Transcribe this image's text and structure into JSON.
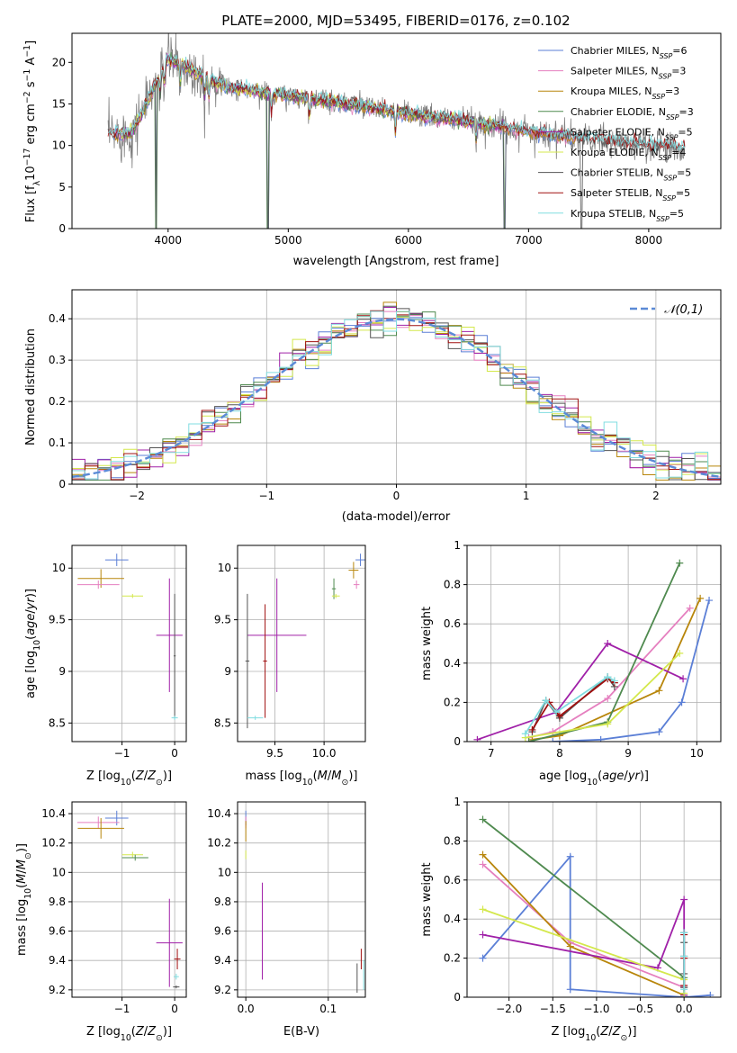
{
  "figure_title": "PLATE=2000, MJD=53495, FIBERID=0176, z=0.102",
  "colors": {
    "Chabrier MILES": "#5b7fd6",
    "Salpeter MILES": "#e57fbf",
    "Kroupa MILES": "#b8860b",
    "Chabrier ELODIE": "#4f8a4f",
    "Salpeter ELODIE": "#a020a8",
    "Kroupa ELODIE": "#d4e84c",
    "Chabrier STELIB": "#555555",
    "Salpeter STELIB": "#a01010",
    "Kroupa STELIB": "#80dde0",
    "data": "#808080",
    "gaussian": "#5b8ad6",
    "orange": "#e87722"
  },
  "chart_data": [
    {
      "type": "line",
      "panel": "spectrum",
      "xlabel": "wavelength [Angstrom, rest frame]",
      "ylabel": "Flux [f_λ10^-17 erg cm^-2 s^-1 A^-1]",
      "xlim": [
        3200,
        8600
      ],
      "ylim": [
        0,
        23.5
      ],
      "xticks": [
        4000,
        5000,
        6000,
        7000,
        8000
      ],
      "yticks": [
        0,
        5,
        10,
        15,
        20
      ],
      "legend_position": "upper-right",
      "legend": [
        {
          "name": "Chabrier MILES",
          "nssp": "6"
        },
        {
          "name": "Salpeter MILES",
          "nssp": "3"
        },
        {
          "name": "Kroupa MILES",
          "nssp": "3"
        },
        {
          "name": "Chabrier ELODIE",
          "nssp": "3"
        },
        {
          "name": "Salpeter ELODIE",
          "nssp": "5"
        },
        {
          "name": "Kroupa ELODIE",
          "nssp": "4"
        },
        {
          "name": "Chabrier STELIB",
          "nssp": "5"
        },
        {
          "name": "Salpeter STELIB",
          "nssp": "5"
        },
        {
          "name": "Kroupa STELIB",
          "nssp": "5"
        }
      ],
      "continuum": {
        "x": [
          3500,
          3700,
          3900,
          4000,
          4200,
          4500,
          5000,
          5500,
          6000,
          6500,
          7000,
          7500,
          8000,
          8300
        ],
        "y": [
          11.3,
          11.5,
          17.5,
          20.5,
          19.0,
          17.0,
          16.0,
          15.0,
          13.8,
          12.9,
          11.7,
          10.7,
          10.0,
          9.6
        ]
      },
      "grid": false
    },
    {
      "type": "step",
      "panel": "residual_histogram",
      "xlabel": "(data-model)/error",
      "ylabel": "Normed distribution",
      "xlim": [
        -2.5,
        2.5
      ],
      "ylim": [
        0,
        0.47
      ],
      "xticks": [
        -2,
        -1,
        0,
        1,
        2
      ],
      "yticks": [
        0.0,
        0.1,
        0.2,
        0.3,
        0.4
      ],
      "legend_position": "upper-right",
      "legend": [
        "𝒩(0,1)"
      ],
      "grid": true
    },
    {
      "type": "errorbar",
      "panel": "age_vs_Z",
      "xlabel": "Z [log10(Z/Z⊙)]",
      "ylabel": "age [log10(age/yr)]",
      "xlim": [
        -1.95,
        0.22
      ],
      "ylim": [
        8.32,
        10.22
      ],
      "xticks": [
        -1,
        0
      ],
      "yticks": [
        8.5,
        9.0,
        9.5,
        10.0
      ],
      "grid": true,
      "points": [
        {
          "series": "Chabrier MILES",
          "x": -1.1,
          "y": 10.08,
          "xerr": 0.22,
          "yerr": 0.06
        },
        {
          "series": "Kroupa MILES",
          "x": -1.4,
          "y": 9.9,
          "xerr": 0.44,
          "yerr": 0.09
        },
        {
          "series": "Salpeter MILES",
          "x": -1.45,
          "y": 9.84,
          "xerr": 0.4,
          "yerr": 0.04
        },
        {
          "series": "Kroupa ELODIE",
          "x": -0.8,
          "y": 9.73,
          "xerr": 0.2,
          "yerr": 0.02
        },
        {
          "series": "Salpeter ELODIE",
          "x": -0.1,
          "y": 9.35,
          "xerr": 0.25,
          "yerr": 0.55
        },
        {
          "series": "Chabrier STELIB",
          "x": 0.0,
          "y": 9.15,
          "xerr": 0.02,
          "yerr": 0.6
        },
        {
          "series": "Kroupa STELIB",
          "x": 0.0,
          "y": 8.55,
          "xerr": 0.06,
          "yerr": 0.02
        }
      ]
    },
    {
      "type": "errorbar",
      "panel": "age_vs_mass",
      "xlabel": "mass [log10(M/M⊙)]",
      "ylabel": "",
      "xlim": [
        9.12,
        10.42
      ],
      "ylim": [
        8.32,
        10.22
      ],
      "xticks": [
        9.5,
        10.0
      ],
      "yticks": [
        8.5,
        9.0,
        9.5,
        10.0
      ],
      "grid": true,
      "points": [
        {
          "series": "Chabrier MILES",
          "x": 10.37,
          "y": 10.08,
          "xerr": 0.05,
          "yerr": 0.06
        },
        {
          "series": "Kroupa MILES",
          "x": 10.3,
          "y": 9.98,
          "xerr": 0.05,
          "yerr": 0.08
        },
        {
          "series": "Salpeter MILES",
          "x": 10.33,
          "y": 9.84,
          "xerr": 0.03,
          "yerr": 0.04
        },
        {
          "series": "Chabrier ELODIE",
          "x": 10.1,
          "y": 9.8,
          "xerr": 0.02,
          "yerr": 0.1
        },
        {
          "series": "Kroupa ELODIE",
          "x": 10.12,
          "y": 9.73,
          "xerr": 0.04,
          "yerr": 0.02
        },
        {
          "series": "Salpeter ELODIE",
          "x": 9.52,
          "y": 9.35,
          "xerr": 0.3,
          "yerr": 0.55
        },
        {
          "series": "Chabrier STELIB",
          "x": 9.22,
          "y": 9.1,
          "xerr": 0.02,
          "yerr": 0.65
        },
        {
          "series": "Kroupa STELIB",
          "x": 9.3,
          "y": 8.55,
          "xerr": 0.08,
          "yerr": 0.02
        },
        {
          "series": "Salpeter STELIB",
          "x": 9.4,
          "y": 9.1,
          "xerr": 0.02,
          "yerr": 0.55
        }
      ]
    },
    {
      "type": "line",
      "panel": "mass_weight_vs_age",
      "xlabel": "age [log10(age/yr)]",
      "ylabel": "mass weight",
      "xlim": [
        6.65,
        10.35
      ],
      "ylim": [
        0,
        1.0
      ],
      "xticks": [
        7,
        8,
        9,
        10
      ],
      "yticks": [
        0.0,
        0.2,
        0.4,
        0.6,
        0.8,
        1.0
      ],
      "grid": true,
      "series": [
        {
          "name": "Chabrier MILES",
          "x": [
            7.9,
            8.6,
            9.45,
            9.78,
            10.18
          ],
          "y": [
            0.0,
            0.01,
            0.05,
            0.2,
            0.72
          ]
        },
        {
          "name": "Salpeter MILES",
          "x": [
            7.55,
            7.9,
            8.7,
            9.9
          ],
          "y": [
            0.02,
            0.05,
            0.22,
            0.68
          ]
        },
        {
          "name": "Kroupa MILES",
          "x": [
            7.6,
            8.0,
            9.45,
            10.05
          ],
          "y": [
            0.01,
            0.03,
            0.26,
            0.73
          ]
        },
        {
          "name": "Chabrier ELODIE",
          "x": [
            7.55,
            8.7,
            9.75
          ],
          "y": [
            0.0,
            0.1,
            0.91
          ]
        },
        {
          "name": "Salpeter ELODIE",
          "x": [
            6.8,
            7.95,
            8.7,
            9.8
          ],
          "y": [
            0.01,
            0.15,
            0.5,
            0.32
          ]
        },
        {
          "name": "Kroupa ELODIE",
          "x": [
            7.5,
            8.7,
            9.75
          ],
          "y": [
            0.02,
            0.09,
            0.45
          ]
        },
        {
          "name": "Chabrier STELIB",
          "x": [
            7.6,
            7.8,
            8.0,
            8.7,
            8.8
          ],
          "y": [
            0.05,
            0.21,
            0.12,
            0.33,
            0.28
          ]
        },
        {
          "name": "Salpeter STELIB",
          "x": [
            7.6,
            7.85,
            8.0,
            8.7,
            8.8
          ],
          "y": [
            0.06,
            0.2,
            0.13,
            0.32,
            0.3
          ]
        },
        {
          "name": "Kroupa STELIB",
          "x": [
            7.5,
            7.8,
            7.95,
            8.7,
            8.8
          ],
          "y": [
            0.04,
            0.21,
            0.15,
            0.33,
            0.31
          ]
        }
      ]
    },
    {
      "type": "errorbar",
      "panel": "mass_vs_Z",
      "xlabel": "Z [log10(Z/Z⊙)]",
      "ylabel": "mass [log10(M/M⊙)]",
      "xlim": [
        -1.95,
        0.22
      ],
      "ylim": [
        9.15,
        10.48
      ],
      "xticks": [
        -1,
        0
      ],
      "yticks": [
        9.2,
        9.4,
        9.6,
        9.8,
        10.0,
        10.2,
        10.4
      ],
      "grid": true,
      "points": [
        {
          "series": "Chabrier MILES",
          "x": -1.1,
          "y": 10.37,
          "xerr": 0.22,
          "yerr": 0.05
        },
        {
          "series": "Salpeter MILES",
          "x": -1.45,
          "y": 10.34,
          "xerr": 0.4,
          "yerr": 0.04
        },
        {
          "series": "Kroupa MILES",
          "x": -1.4,
          "y": 10.3,
          "xerr": 0.44,
          "yerr": 0.07
        },
        {
          "series": "Kroupa ELODIE",
          "x": -0.8,
          "y": 10.12,
          "xerr": 0.2,
          "yerr": 0.02
        },
        {
          "series": "Chabrier ELODIE",
          "x": -0.75,
          "y": 10.1,
          "xerr": 0.25,
          "yerr": 0.02
        },
        {
          "series": "Salpeter ELODIE",
          "x": -0.1,
          "y": 9.52,
          "xerr": 0.25,
          "yerr": 0.3
        },
        {
          "series": "Salpeter STELIB",
          "x": 0.05,
          "y": 9.41,
          "xerr": 0.06,
          "yerr": 0.07
        },
        {
          "series": "Kroupa STELIB",
          "x": 0.03,
          "y": 9.29,
          "xerr": 0.05,
          "yerr": 0.02
        },
        {
          "series": "Chabrier STELIB",
          "x": 0.03,
          "y": 9.22,
          "xerr": 0.06,
          "yerr": 0.01
        }
      ]
    },
    {
      "type": "errorbar",
      "panel": "mass_vs_EBV",
      "xlabel": "E(B-V)",
      "ylabel": "",
      "xlim": [
        -0.01,
        0.145
      ],
      "ylim": [
        9.15,
        10.48
      ],
      "xticks": [
        0.0,
        0.1
      ],
      "yticks": [
        9.2,
        9.4,
        9.6,
        9.8,
        10.0,
        10.2,
        10.4
      ],
      "grid": true,
      "points": [
        {
          "series": "Chabrier MILES",
          "x": 0.0,
          "y": 10.37,
          "xerr": 0,
          "yerr": 0.05
        },
        {
          "series": "Salpeter MILES",
          "x": 0.0,
          "y": 10.34,
          "xerr": 0,
          "yerr": 0.04
        },
        {
          "series": "Kroupa MILES",
          "x": 0.0,
          "y": 10.28,
          "xerr": 0,
          "yerr": 0.07
        },
        {
          "series": "Kroupa ELODIE",
          "x": 0.0,
          "y": 10.12,
          "xerr": 0,
          "yerr": 0.03
        },
        {
          "series": "Salpeter ELODIE",
          "x": 0.02,
          "y": 9.6,
          "xerr": 0,
          "yerr": 0.33
        },
        {
          "series": "Chabrier STELIB",
          "x": 0.135,
          "y": 9.28,
          "xerr": 0,
          "yerr": 0.1
        },
        {
          "series": "Salpeter STELIB",
          "x": 0.14,
          "y": 9.41,
          "xerr": 0,
          "yerr": 0.07
        },
        {
          "series": "Kroupa STELIB",
          "x": 0.143,
          "y": 9.3,
          "xerr": 0,
          "yerr": 0.1
        }
      ]
    },
    {
      "type": "line",
      "panel": "mass_weight_vs_Z",
      "xlabel": "Z [log10(Z/Z⊙)]",
      "ylabel": "mass weight",
      "xlim": [
        -2.48,
        0.42
      ],
      "ylim": [
        0,
        1.0
      ],
      "xticks": [
        -2.0,
        -1.5,
        -1.0,
        -0.5,
        0.0
      ],
      "yticks": [
        0.0,
        0.2,
        0.4,
        0.6,
        0.8,
        1.0
      ],
      "grid": true,
      "series": [
        {
          "name": "Chabrier MILES",
          "x": [
            -2.3,
            -1.3,
            -1.3,
            0.0,
            0.3
          ],
          "y": [
            0.2,
            0.72,
            0.04,
            0.0,
            0.01
          ]
        },
        {
          "name": "Salpeter MILES",
          "x": [
            -2.3,
            -1.3,
            0.0
          ],
          "y": [
            0.68,
            0.28,
            0.05
          ]
        },
        {
          "name": "Kroupa MILES",
          "x": [
            -2.3,
            -1.3,
            0.0
          ],
          "y": [
            0.73,
            0.26,
            0.01
          ]
        },
        {
          "name": "Chabrier ELODIE",
          "x": [
            -2.3,
            0.0,
            0.0
          ],
          "y": [
            0.91,
            0.1,
            0.0
          ]
        },
        {
          "name": "Salpeter ELODIE",
          "x": [
            -2.3,
            -0.3,
            0.0,
            0.0
          ],
          "y": [
            0.32,
            0.15,
            0.5,
            0.01
          ]
        },
        {
          "name": "Kroupa ELODIE",
          "x": [
            -2.3,
            0.0,
            0.0
          ],
          "y": [
            0.45,
            0.09,
            0.02
          ]
        },
        {
          "name": "Chabrier STELIB",
          "x": [
            0.0,
            0.0,
            0.0,
            0.0,
            0.0
          ],
          "y": [
            0.05,
            0.21,
            0.12,
            0.33,
            0.28
          ]
        },
        {
          "name": "Salpeter STELIB",
          "x": [
            0.0,
            0.0,
            0.0
          ],
          "y": [
            0.06,
            0.2,
            0.32
          ]
        },
        {
          "name": "Kroupa STELIB",
          "x": [
            0.0,
            0.0,
            0.0
          ],
          "y": [
            0.04,
            0.21,
            0.33
          ]
        }
      ]
    }
  ]
}
